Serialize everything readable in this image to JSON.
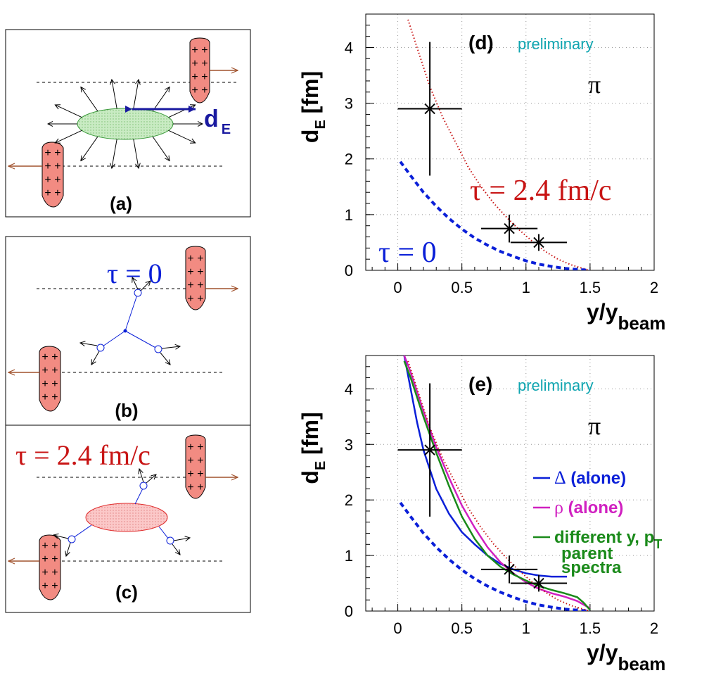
{
  "panel_labels": {
    "a": "(a)",
    "b": "(b)",
    "c": "(c)"
  },
  "panel_a": {
    "de_label": "d",
    "de_sub": "E"
  },
  "panel_b": {
    "tau_label": "τ = 0"
  },
  "panel_c": {
    "tau_label": "τ = 2.4 fm/c"
  },
  "colors": {
    "nucleus_fill": "#f28b82",
    "fireball_green": "#c9ebc3",
    "fireball_red": "#fbc8c8",
    "arrow_brown": "#a0522d",
    "blue": "#0a1fd8",
    "dark_blue": "#1a1aa0",
    "red_text": "#c81414",
    "magenta": "#d020c0",
    "green": "#1a8a1a",
    "cyan": "#10a5b0"
  },
  "chart_data": [
    {
      "id": "d",
      "type": "line",
      "panel_label": "(d)",
      "note": "preliminary",
      "particle": "π",
      "xlabel": "y/y",
      "xlabel_sub": "beam",
      "ylabel": "d",
      "ylabel_sub": "E",
      "ylabel_unit": " [fm]",
      "xlim": [
        -0.25,
        2.0
      ],
      "ylim": [
        0,
        4.6
      ],
      "xticks": [
        "0",
        "0.5",
        "1",
        "1.5",
        "2"
      ],
      "yticks": [
        "0",
        "1",
        "2",
        "3",
        "4"
      ],
      "grid": true,
      "annotations": [
        {
          "text": "τ = 2.4 fm/c",
          "color": "red"
        },
        {
          "text": "τ = 0",
          "color": "blue"
        }
      ],
      "series": [
        {
          "name": "τ = 2.4 fm/c",
          "style": "dotted",
          "color": "#c81414",
          "x": [
            0.08,
            0.15,
            0.25,
            0.35,
            0.45,
            0.55,
            0.65,
            0.75,
            0.85,
            0.95,
            1.05,
            1.15,
            1.25,
            1.35,
            1.45,
            1.5
          ],
          "y": [
            4.5,
            4.0,
            3.3,
            2.75,
            2.3,
            1.85,
            1.5,
            1.2,
            0.95,
            0.72,
            0.52,
            0.34,
            0.2,
            0.1,
            0.03,
            0.0
          ]
        },
        {
          "name": "τ = 0",
          "style": "dashed",
          "color": "#0a1fd8",
          "x": [
            0.02,
            0.1,
            0.2,
            0.3,
            0.4,
            0.5,
            0.6,
            0.7,
            0.8,
            0.9,
            1.0,
            1.1,
            1.2,
            1.3,
            1.4,
            1.5
          ],
          "y": [
            1.95,
            1.7,
            1.4,
            1.15,
            0.93,
            0.74,
            0.58,
            0.45,
            0.34,
            0.25,
            0.17,
            0.11,
            0.07,
            0.035,
            0.015,
            0.0
          ]
        }
      ],
      "points": {
        "x": [
          0.25,
          0.87,
          1.1
        ],
        "y": [
          2.9,
          0.75,
          0.5
        ],
        "xerr": [
          0.25,
          0.22,
          0.22
        ],
        "yerr": [
          1.2,
          0.25,
          0.15
        ]
      }
    },
    {
      "id": "e",
      "type": "line",
      "panel_label": "(e)",
      "note": "preliminary",
      "particle": "π",
      "xlabel": "y/y",
      "xlabel_sub": "beam",
      "ylabel": "d",
      "ylabel_sub": "E",
      "ylabel_unit": " [fm]",
      "xlim": [
        -0.25,
        2.0
      ],
      "ylim": [
        0,
        4.6
      ],
      "xticks": [
        "0",
        "0.5",
        "1",
        "1.5",
        "2"
      ],
      "yticks": [
        "0",
        "1",
        "2",
        "3",
        "4"
      ],
      "grid": true,
      "legend": [
        {
          "sym": "Δ",
          "text": " (alone)",
          "color": "#0a1fd8"
        },
        {
          "sym": "ρ",
          "text": " (alone)",
          "color": "#d020c0"
        },
        {
          "sym": "",
          "text": "different y, p",
          "sub": "T",
          "color": "#1a8a1a"
        },
        {
          "sym": "",
          "text": "parent",
          "color": "#1a8a1a"
        },
        {
          "sym": "",
          "text": "spectra",
          "color": "#1a8a1a"
        }
      ],
      "series": [
        {
          "name": "Δ (alone)",
          "style": "solid",
          "color": "#0a1fd8",
          "x": [
            0.05,
            0.1,
            0.15,
            0.2,
            0.3,
            0.4,
            0.5,
            0.6,
            0.7,
            0.8,
            0.9,
            1.0,
            1.1,
            1.2,
            1.32
          ],
          "y": [
            4.6,
            4.0,
            3.4,
            2.9,
            2.2,
            1.75,
            1.42,
            1.2,
            1.0,
            0.85,
            0.75,
            0.68,
            0.64,
            0.62,
            0.62
          ]
        },
        {
          "name": "ρ (alone)",
          "style": "solid",
          "color": "#d020c0",
          "x": [
            0.05,
            0.1,
            0.2,
            0.3,
            0.4,
            0.5,
            0.6,
            0.7,
            0.8,
            0.9,
            1.0,
            1.1,
            1.2,
            1.3,
            1.4,
            1.5
          ],
          "y": [
            4.6,
            4.3,
            3.6,
            2.95,
            2.4,
            1.9,
            1.5,
            1.15,
            0.88,
            0.68,
            0.52,
            0.4,
            0.32,
            0.26,
            0.18,
            0.05
          ]
        },
        {
          "name": "different y, pT parent spectra",
          "style": "solid",
          "color": "#1a8a1a",
          "x": [
            0.05,
            0.1,
            0.2,
            0.3,
            0.4,
            0.5,
            0.6,
            0.7,
            0.8,
            0.9,
            1.0,
            1.1,
            1.2,
            1.3,
            1.4,
            1.45,
            1.5
          ],
          "y": [
            4.5,
            4.2,
            3.5,
            2.85,
            2.25,
            1.7,
            1.3,
            1.0,
            0.8,
            0.66,
            0.55,
            0.45,
            0.38,
            0.32,
            0.25,
            0.15,
            0.02
          ]
        },
        {
          "name": "τ = 0",
          "style": "dashed",
          "color": "#0a1fd8",
          "x": [
            0.02,
            0.1,
            0.2,
            0.3,
            0.4,
            0.5,
            0.6,
            0.7,
            0.8,
            0.9,
            1.0,
            1.1,
            1.2,
            1.3,
            1.4,
            1.5
          ],
          "y": [
            1.95,
            1.7,
            1.4,
            1.15,
            0.93,
            0.74,
            0.58,
            0.45,
            0.34,
            0.25,
            0.17,
            0.11,
            0.07,
            0.035,
            0.015,
            0.0
          ]
        },
        {
          "name": "τ = 2.4 fm/c",
          "style": "dotted",
          "color": "#c81414",
          "x": [
            0.08,
            0.15,
            0.25,
            0.35,
            0.45,
            0.55,
            0.65,
            0.75,
            0.85,
            0.95,
            1.05,
            1.15,
            1.25,
            1.35,
            1.45,
            1.5
          ],
          "y": [
            4.5,
            4.0,
            3.3,
            2.75,
            2.3,
            1.85,
            1.5,
            1.2,
            0.95,
            0.72,
            0.52,
            0.34,
            0.2,
            0.1,
            0.03,
            0.0
          ]
        }
      ],
      "points": {
        "x": [
          0.25,
          0.87,
          1.1
        ],
        "y": [
          2.9,
          0.75,
          0.5
        ],
        "xerr": [
          0.25,
          0.22,
          0.22
        ],
        "yerr": [
          1.2,
          0.25,
          0.15
        ]
      }
    }
  ]
}
